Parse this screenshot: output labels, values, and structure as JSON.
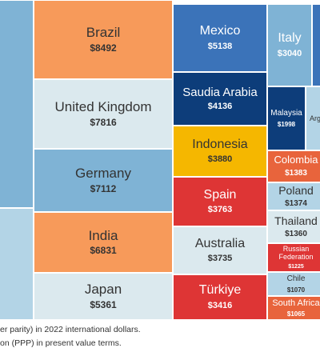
{
  "chart_data": {
    "type": "treemap",
    "unit": "international dollars",
    "items": [
      {
        "name": "",
        "value": null,
        "color": "#7fb3d5"
      },
      {
        "name": "",
        "value": null,
        "color": "#b3d4e6"
      },
      {
        "name": "Brazil",
        "value": 8492,
        "color": "#f79a5a"
      },
      {
        "name": "United Kingdom",
        "value": 7816,
        "color": "#dbe9ee"
      },
      {
        "name": "Germany",
        "value": 7112,
        "color": "#7fb3d5"
      },
      {
        "name": "India",
        "value": 6831,
        "color": "#f79a5a"
      },
      {
        "name": "Japan",
        "value": 5361,
        "color": "#dbe9ee"
      },
      {
        "name": "Mexico",
        "value": 5138,
        "color": "#3b73b9"
      },
      {
        "name": "Saudia Arabia",
        "value": 4136,
        "color": "#0d3d7a"
      },
      {
        "name": "Indonesia",
        "value": 3880,
        "color": "#f5b700"
      },
      {
        "name": "Spain",
        "value": 3763,
        "color": "#de3535"
      },
      {
        "name": "Australia",
        "value": 3735,
        "color": "#dbe9ee"
      },
      {
        "name": "Türkiye",
        "value": 3416,
        "color": "#de3535"
      },
      {
        "name": "Italy",
        "value": 3040,
        "color": "#7fb3d5"
      },
      {
        "name": "",
        "value": null,
        "color": "#3b73b9"
      },
      {
        "name": "Malaysia",
        "value": 1998,
        "color": "#0d3d7a"
      },
      {
        "name": "Arg",
        "value": null,
        "color": "#b3d4e6"
      },
      {
        "name": "Colombia",
        "value": 1383,
        "color": "#e8643c"
      },
      {
        "name": "Poland",
        "value": 1374,
        "color": "#b3d4e6"
      },
      {
        "name": "Thailand",
        "value": 1360,
        "color": "#dbe9ee"
      },
      {
        "name": "Russian Federation",
        "value": 1225,
        "color": "#de3535"
      },
      {
        "name": "Chile",
        "value": 1070,
        "color": "#b3d4e6"
      },
      {
        "name": "South Africa",
        "value": 1065,
        "color": "#e8643c"
      }
    ]
  },
  "notes": [
    "er parity) in 2022 international dollars.",
    "on (PPP) in present value terms."
  ]
}
